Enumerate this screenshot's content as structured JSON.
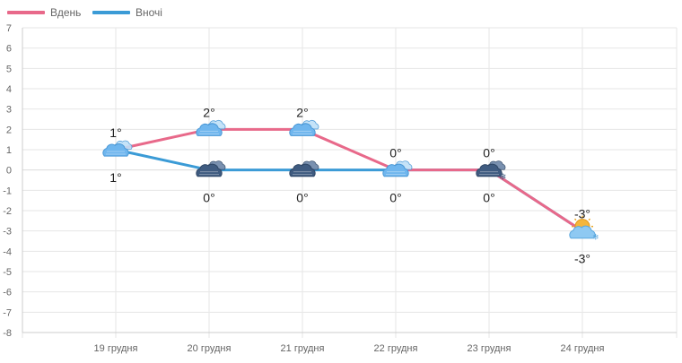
{
  "chart_data": {
    "type": "line",
    "categories": [
      "19 грудня",
      "20 грудня",
      "21 грудня",
      "22 грудня",
      "23 грудня",
      "24 грудня"
    ],
    "series": [
      {
        "name": "Вдень",
        "color": "#e8698a",
        "values": [
          1,
          2,
          2,
          0,
          0,
          -3
        ]
      },
      {
        "name": "Вночі",
        "color": "#3b9bd6",
        "values": [
          1,
          0,
          0,
          0,
          0,
          -3
        ]
      }
    ],
    "day_labels": [
      "1°",
      "2°",
      "2°",
      "0°",
      "0°",
      "-3°"
    ],
    "night_labels": [
      "1°",
      "0°",
      "0°",
      "0°",
      "0°",
      "-3°"
    ],
    "day_icons": [
      "cloudy-icon",
      "cloudy-icon",
      "cloudy-icon",
      "cloudy-icon",
      "snow-cloud-icon",
      "sun-cloud-icon"
    ],
    "night_icons": [
      "cloudy-icon",
      "dark-cloud-icon",
      "dark-cloud-icon",
      "cloudy-icon",
      "snow-cloud-icon",
      "sun-cloud-icon"
    ],
    "ylim": [
      -8,
      7
    ],
    "yticks": [
      7,
      6,
      5,
      4,
      3,
      2,
      1,
      0,
      -1,
      -2,
      -3,
      -4,
      -5,
      -6,
      -7,
      -8
    ],
    "grid": true,
    "legend_position": "top-left"
  }
}
